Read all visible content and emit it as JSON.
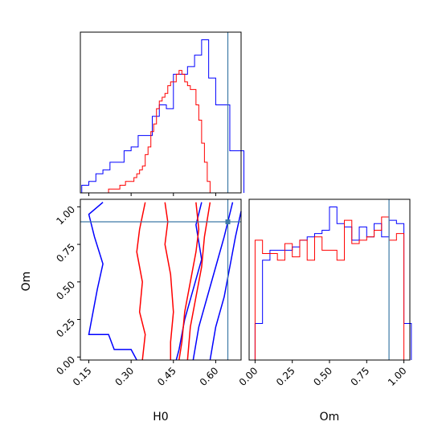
{
  "chart_data": [
    {
      "panel": "H0 marginal",
      "type": "histogram",
      "xlabel": "",
      "ylabel": "",
      "xlim": [
        0.12,
        0.69
      ],
      "truth_line": 0.643,
      "series": [
        {
          "color": "#0000ff",
          "edges": [
            0.125,
            0.15,
            0.175,
            0.2,
            0.225,
            0.25,
            0.275,
            0.3,
            0.325,
            0.35,
            0.375,
            0.4,
            0.425,
            0.45,
            0.475,
            0.5,
            0.525,
            0.55,
            0.575,
            0.6,
            0.625,
            0.65,
            0.675,
            0.7
          ],
          "counts": [
            2,
            3,
            5,
            6,
            8,
            8,
            11,
            12,
            15,
            15,
            20,
            23,
            22,
            31,
            31,
            33,
            36,
            40,
            30,
            23,
            23,
            11,
            11
          ]
        },
        {
          "color": "#ff0000",
          "edges": [
            0.22,
            0.23,
            0.24,
            0.25,
            0.26,
            0.27,
            0.28,
            0.29,
            0.3,
            0.31,
            0.32,
            0.33,
            0.34,
            0.35,
            0.36,
            0.37,
            0.38,
            0.39,
            0.4,
            0.41,
            0.42,
            0.43,
            0.44,
            0.45,
            0.46,
            0.47,
            0.48,
            0.49,
            0.5,
            0.51,
            0.52,
            0.53,
            0.54,
            0.55,
            0.56,
            0.57,
            0.58
          ],
          "counts": [
            1,
            1,
            1,
            1,
            2,
            2,
            3,
            3,
            3,
            4,
            5,
            6,
            7,
            10,
            12,
            16,
            18,
            22,
            24,
            25,
            26,
            28,
            29,
            29,
            31,
            32,
            31,
            29,
            28,
            27,
            27,
            23,
            19,
            13,
            8,
            3
          ]
        }
      ]
    },
    {
      "panel": "Om marginal",
      "type": "histogram",
      "xlabel": "Om",
      "ylabel": "",
      "xlim": [
        -0.04,
        1.04
      ],
      "xticks": [
        "0.00",
        "0.25",
        "0.50",
        "0.75",
        "1.00"
      ],
      "truth_line": 0.9,
      "series": [
        {
          "color": "#0000ff",
          "edges": [
            0.0,
            0.05,
            0.1,
            0.15,
            0.2,
            0.25,
            0.3,
            0.35,
            0.4,
            0.45,
            0.5,
            0.55,
            0.6,
            0.65,
            0.7,
            0.75,
            0.8,
            0.85,
            0.9,
            0.95,
            1.0,
            1.05
          ],
          "counts": [
            11,
            30,
            33,
            33,
            33,
            34,
            36,
            37,
            38,
            39,
            46,
            41,
            40,
            36,
            40,
            37,
            41,
            37,
            42,
            41,
            11
          ]
        },
        {
          "color": "#ff0000",
          "edges": [
            0.0,
            0.05,
            0.1,
            0.15,
            0.2,
            0.25,
            0.3,
            0.35,
            0.4,
            0.45,
            0.5,
            0.55,
            0.6,
            0.65,
            0.7,
            0.75,
            0.8,
            0.85,
            0.9,
            0.95,
            1.0
          ],
          "counts": [
            36,
            32,
            32,
            30,
            35,
            31,
            36,
            30,
            37,
            33,
            33,
            30,
            42,
            35,
            36,
            37,
            39,
            43,
            36,
            38
          ]
        }
      ]
    },
    {
      "panel": "H0 vs Om joint",
      "type": "contour",
      "xlabel": "H0",
      "ylabel": "Om",
      "xlim": [
        0.12,
        0.69
      ],
      "ylim": [
        -0.02,
        1.05
      ],
      "xticks": [
        "0.15",
        "0.30",
        "0.45",
        "0.60"
      ],
      "yticks": [
        "0.00",
        "0.25",
        "0.50",
        "0.75",
        "1.00"
      ],
      "truth_point": {
        "x": 0.643,
        "y": 0.9
      },
      "series": [
        {
          "color": "#0000ff",
          "contours": [
            [
              [
                0.55,
                1.03
              ],
              [
                0.53,
                0.88
              ],
              [
                0.55,
                0.65
              ],
              [
                0.52,
                0.45
              ],
              [
                0.49,
                0.25
              ],
              [
                0.47,
                0.05
              ],
              [
                0.46,
                -0.02
              ]
            ],
            [
              [
                0.66,
                1.03
              ],
              [
                0.63,
                0.8
              ],
              [
                0.6,
                0.6
              ],
              [
                0.57,
                0.4
              ],
              [
                0.54,
                0.2
              ],
              [
                0.52,
                -0.02
              ]
            ],
            [
              [
                0.2,
                1.03
              ],
              [
                0.15,
                0.95
              ],
              [
                0.17,
                0.8
              ],
              [
                0.2,
                0.62
              ],
              [
                0.18,
                0.45
              ],
              [
                0.16,
                0.25
              ],
              [
                0.15,
                0.15
              ],
              [
                0.22,
                0.15
              ],
              [
                0.24,
                0.05
              ],
              [
                0.3,
                0.05
              ],
              [
                0.32,
                -0.02
              ]
            ],
            [
              [
                0.69,
                0.97
              ],
              [
                0.67,
                0.8
              ],
              [
                0.65,
                0.6
              ],
              [
                0.63,
                0.4
              ],
              [
                0.6,
                0.2
              ],
              [
                0.58,
                -0.02
              ]
            ]
          ]
        },
        {
          "color": "#ff0000",
          "contours": [
            [
              [
                0.42,
                1.03
              ],
              [
                0.43,
                0.9
              ],
              [
                0.42,
                0.75
              ],
              [
                0.44,
                0.55
              ],
              [
                0.45,
                0.3
              ],
              [
                0.44,
                0.1
              ],
              [
                0.44,
                -0.02
              ]
            ],
            [
              [
                0.35,
                1.03
              ],
              [
                0.33,
                0.85
              ],
              [
                0.32,
                0.7
              ],
              [
                0.34,
                0.5
              ],
              [
                0.33,
                0.3
              ],
              [
                0.35,
                0.15
              ],
              [
                0.34,
                -0.02
              ]
            ],
            [
              [
                0.53,
                1.03
              ],
              [
                0.54,
                0.85
              ],
              [
                0.53,
                0.7
              ],
              [
                0.51,
                0.5
              ],
              [
                0.49,
                0.3
              ],
              [
                0.48,
                0.1
              ],
              [
                0.47,
                -0.02
              ]
            ],
            [
              [
                0.58,
                1.03
              ],
              [
                0.56,
                0.8
              ],
              [
                0.55,
                0.6
              ],
              [
                0.53,
                0.4
              ],
              [
                0.51,
                0.2
              ],
              [
                0.5,
                -0.02
              ]
            ]
          ]
        }
      ]
    }
  ]
}
